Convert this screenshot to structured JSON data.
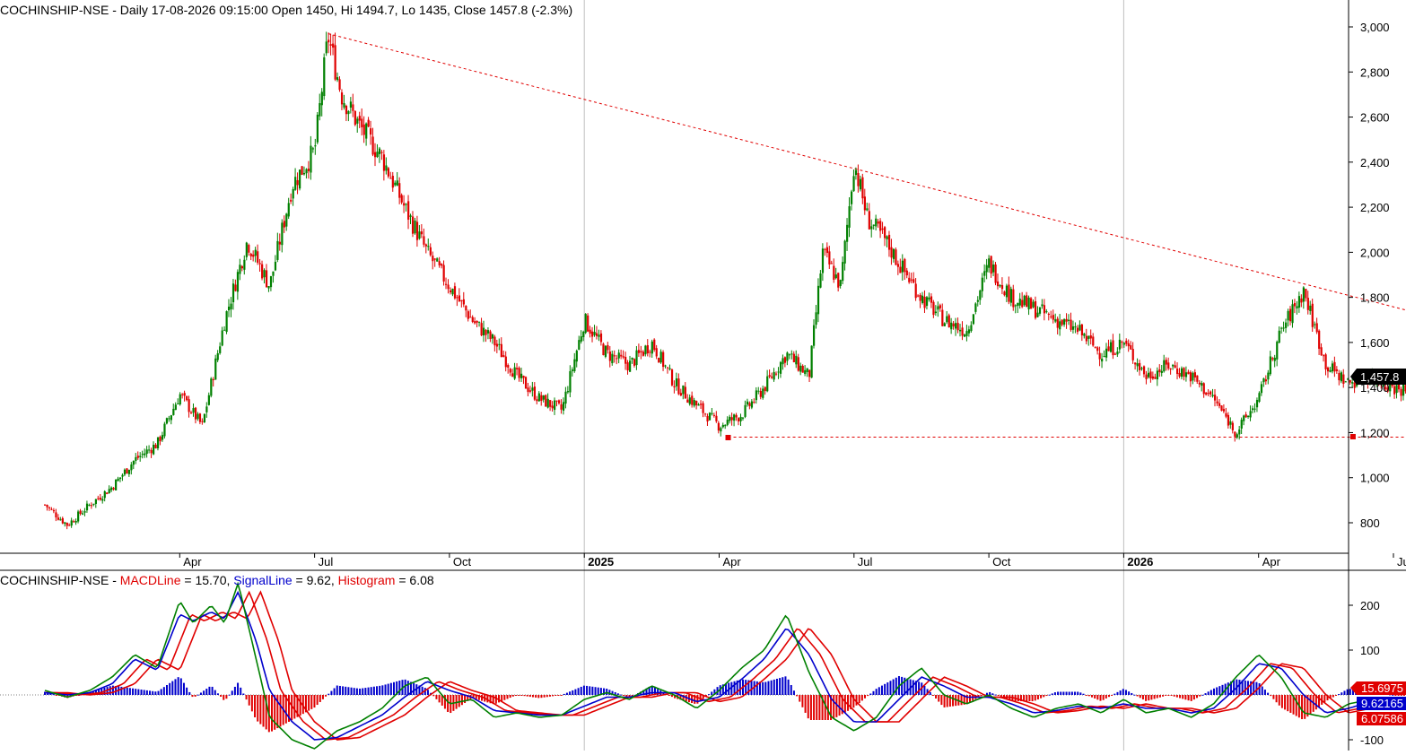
{
  "colors": {
    "up": "#008000",
    "down": "#e00000",
    "trendline": "#e00000",
    "macd": "#008000",
    "signal": "#0000cc",
    "histogram": "#e00000",
    "grid": "#c0c0c0",
    "price_tag_bg": "#000000"
  },
  "header": {
    "title": "COCHINSHIP-NSE - Daily 17-08-2026 09:15:00 Open 1450, Hi 1494.7, Lo 1435, Close 1457.8 (-2.3%)"
  },
  "macd_header": {
    "prefix": "COCHINSHIP-NSE - ",
    "macd_label": "MACDLine",
    "macd_value": " = 15.70, ",
    "signal_label": "SignalLine",
    "signal_value": " = 9.62, ",
    "hist_label": "Histogram",
    "hist_value": " = 6.08"
  },
  "price_tag": "1,457.8",
  "macd_tags": {
    "macd": "15.6975",
    "signal": "9.62165",
    "hist": "6.07586"
  },
  "chart_data": [
    {
      "type": "candlestick",
      "symbol": "COCHINSHIP-NSE",
      "interval": "Daily",
      "ylim": [
        700,
        3080
      ],
      "y_ticks": [
        "3,000",
        "2,800",
        "2,600",
        "2,400",
        "2,200",
        "2,000",
        "1,800",
        "1,600",
        "1,400",
        "1,200",
        "1,000",
        "800"
      ],
      "y_tick_values": [
        3000,
        2800,
        2600,
        2400,
        2200,
        2000,
        1800,
        1600,
        1400,
        1200,
        1000,
        800
      ],
      "x_labels": [
        {
          "label": "Apr",
          "bold": false
        },
        {
          "label": "Jul",
          "bold": false
        },
        {
          "label": "Oct",
          "bold": false
        },
        {
          "label": "2025",
          "bold": true
        },
        {
          "label": "Apr",
          "bold": false
        },
        {
          "label": "Jul",
          "bold": false
        },
        {
          "label": "Oct",
          "bold": false
        },
        {
          "label": "2026",
          "bold": true
        },
        {
          "label": "Apr",
          "bold": false
        },
        {
          "label": "Jul",
          "bold": false
        }
      ],
      "x_label_months": [
        3,
        6,
        9,
        12,
        15,
        18,
        21,
        24,
        27,
        30
      ],
      "year_separators_months": [
        12,
        24
      ],
      "last_close": 1457.8,
      "price_path": [
        [
          0,
          880
        ],
        [
          0.5,
          790
        ],
        [
          1,
          880
        ],
        [
          1.5,
          960
        ],
        [
          2,
          1080
        ],
        [
          2.5,
          1150
        ],
        [
          3,
          1370
        ],
        [
          3.5,
          1230
        ],
        [
          4,
          1700
        ],
        [
          4.5,
          2050
        ],
        [
          5,
          1850
        ],
        [
          5.5,
          2300
        ],
        [
          6,
          2450
        ],
        [
          6.3,
          2960
        ],
        [
          6.6,
          2700
        ],
        [
          7,
          2560
        ],
        [
          7.5,
          2420
        ],
        [
          8,
          2200
        ],
        [
          8.5,
          2000
        ],
        [
          9,
          1850
        ],
        [
          9.5,
          1700
        ],
        [
          10,
          1600
        ],
        [
          10.5,
          1450
        ],
        [
          11,
          1350
        ],
        [
          11.5,
          1300
        ],
        [
          12,
          1700
        ],
        [
          12.5,
          1550
        ],
        [
          13,
          1500
        ],
        [
          13.5,
          1600
        ],
        [
          14,
          1420
        ],
        [
          14.5,
          1320
        ],
        [
          15,
          1230
        ],
        [
          15.5,
          1280
        ],
        [
          16,
          1400
        ],
        [
          16.5,
          1550
        ],
        [
          17,
          1450
        ],
        [
          17.3,
          2000
        ],
        [
          17.7,
          1850
        ],
        [
          18,
          2400
        ],
        [
          18.3,
          2150
        ],
        [
          18.7,
          2050
        ],
        [
          19,
          1950
        ],
        [
          19.5,
          1800
        ],
        [
          20,
          1700
        ],
        [
          20.5,
          1650
        ],
        [
          21,
          1950
        ],
        [
          21.5,
          1800
        ],
        [
          22,
          1750
        ],
        [
          22.5,
          1700
        ],
        [
          23,
          1650
        ],
        [
          23.5,
          1550
        ],
        [
          24,
          1600
        ],
        [
          24.5,
          1450
        ],
        [
          25,
          1500
        ],
        [
          25.5,
          1450
        ],
        [
          26,
          1350
        ],
        [
          26.5,
          1200
        ],
        [
          27,
          1350
        ],
        [
          27.5,
          1650
        ],
        [
          28,
          1830
        ],
        [
          28.5,
          1500
        ],
        [
          29,
          1420
        ],
        [
          29.5,
          1450
        ],
        [
          30,
          1400
        ],
        [
          30.5,
          1380
        ],
        [
          31,
          1450
        ],
        [
          31.3,
          1510
        ],
        [
          31.5,
          1457.8
        ]
      ],
      "trendlines": [
        {
          "from": [
            6.3,
            2970
          ],
          "to": [
            32.5,
            1630
          ],
          "style": "dotted"
        },
        {
          "from": [
            15.2,
            1180
          ],
          "to": [
            32.5,
            1180
          ],
          "style": "dotted"
        }
      ],
      "markers": [
        {
          "x": 15.2,
          "y": 1178
        },
        {
          "x": 29.1,
          "y": 1182
        }
      ]
    },
    {
      "type": "macd",
      "series": [
        {
          "name": "MACDLine",
          "last": 15.7
        },
        {
          "name": "SignalLine",
          "last": 9.62
        },
        {
          "name": "Histogram",
          "last": 6.08
        }
      ],
      "ylim": [
        -130,
        280
      ],
      "y_ticks": [
        "200",
        "100",
        "-100"
      ],
      "y_tick_values": [
        200,
        100,
        -100
      ],
      "macd_path": [
        [
          0,
          10
        ],
        [
          0.5,
          -5
        ],
        [
          1,
          10
        ],
        [
          1.5,
          40
        ],
        [
          2,
          90
        ],
        [
          2.5,
          60
        ],
        [
          3,
          210
        ],
        [
          3.3,
          160
        ],
        [
          3.7,
          200
        ],
        [
          4,
          160
        ],
        [
          4.3,
          250
        ],
        [
          4.7,
          80
        ],
        [
          5,
          -50
        ],
        [
          5.5,
          -100
        ],
        [
          6,
          -120
        ],
        [
          6.5,
          -80
        ],
        [
          7,
          -60
        ],
        [
          7.5,
          -30
        ],
        [
          8,
          20
        ],
        [
          8.5,
          40
        ],
        [
          9,
          -20
        ],
        [
          9.5,
          -10
        ],
        [
          10,
          -50
        ],
        [
          10.5,
          -40
        ],
        [
          11,
          -50
        ],
        [
          11.5,
          -45
        ],
        [
          12,
          -10
        ],
        [
          12.5,
          5
        ],
        [
          13,
          -10
        ],
        [
          13.5,
          20
        ],
        [
          14,
          0
        ],
        [
          14.5,
          -30
        ],
        [
          15,
          10
        ],
        [
          15.5,
          60
        ],
        [
          16,
          100
        ],
        [
          16.5,
          180
        ],
        [
          17,
          50
        ],
        [
          17.5,
          -50
        ],
        [
          18,
          -80
        ],
        [
          18.5,
          -50
        ],
        [
          19,
          20
        ],
        [
          19.5,
          60
        ],
        [
          20,
          0
        ],
        [
          20.5,
          -20
        ],
        [
          21,
          0
        ],
        [
          21.5,
          -30
        ],
        [
          22,
          -50
        ],
        [
          22.5,
          -30
        ],
        [
          23,
          -20
        ],
        [
          23.5,
          -40
        ],
        [
          24,
          -10
        ],
        [
          24.5,
          -40
        ],
        [
          25,
          -30
        ],
        [
          25.5,
          -50
        ],
        [
          26,
          -20
        ],
        [
          26.5,
          40
        ],
        [
          27,
          90
        ],
        [
          27.5,
          40
        ],
        [
          28,
          -40
        ],
        [
          28.5,
          -50
        ],
        [
          29,
          -20
        ],
        [
          29.5,
          -10
        ],
        [
          30,
          -15
        ],
        [
          30.5,
          -20
        ],
        [
          31,
          -15
        ],
        [
          31.5,
          15.7
        ]
      ],
      "signal_path": [
        [
          0,
          5
        ],
        [
          0.5,
          0
        ],
        [
          1,
          5
        ],
        [
          1.5,
          25
        ],
        [
          2,
          80
        ],
        [
          2.5,
          55
        ],
        [
          3,
          180
        ],
        [
          3.3,
          165
        ],
        [
          3.7,
          185
        ],
        [
          4,
          170
        ],
        [
          4.3,
          230
        ],
        [
          4.7,
          120
        ],
        [
          5,
          10
        ],
        [
          5.5,
          -60
        ],
        [
          6,
          -100
        ],
        [
          6.5,
          -95
        ],
        [
          7,
          -70
        ],
        [
          7.5,
          -45
        ],
        [
          8,
          -5
        ],
        [
          8.5,
          30
        ],
        [
          9,
          10
        ],
        [
          9.5,
          -5
        ],
        [
          10,
          -35
        ],
        [
          10.5,
          -40
        ],
        [
          11,
          -45
        ],
        [
          11.5,
          -45
        ],
        [
          12,
          -25
        ],
        [
          12.5,
          -5
        ],
        [
          13,
          -5
        ],
        [
          13.5,
          5
        ],
        [
          14,
          5
        ],
        [
          14.5,
          -15
        ],
        [
          15,
          -5
        ],
        [
          15.5,
          35
        ],
        [
          16,
          80
        ],
        [
          16.5,
          150
        ],
        [
          17,
          90
        ],
        [
          17.5,
          -10
        ],
        [
          18,
          -60
        ],
        [
          18.5,
          -60
        ],
        [
          19,
          -10
        ],
        [
          19.5,
          40
        ],
        [
          20,
          20
        ],
        [
          20.5,
          -5
        ],
        [
          21,
          -5
        ],
        [
          21.5,
          -20
        ],
        [
          22,
          -40
        ],
        [
          22.5,
          -35
        ],
        [
          23,
          -25
        ],
        [
          23.5,
          -30
        ],
        [
          24,
          -20
        ],
        [
          24.5,
          -30
        ],
        [
          25,
          -30
        ],
        [
          25.5,
          -40
        ],
        [
          26,
          -30
        ],
        [
          26.5,
          15
        ],
        [
          27,
          70
        ],
        [
          27.5,
          60
        ],
        [
          28,
          0
        ],
        [
          28.5,
          -40
        ],
        [
          29,
          -30
        ],
        [
          29.5,
          -15
        ],
        [
          30,
          -15
        ],
        [
          30.5,
          -18
        ],
        [
          31,
          -16
        ],
        [
          31.5,
          9.62
        ]
      ]
    }
  ]
}
